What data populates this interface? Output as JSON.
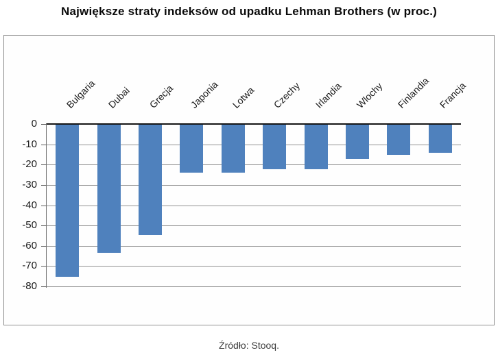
{
  "title": "Największe straty indeksów od upadku Lehman Brothers (w proc.)",
  "source": "Źródło: Stooq.",
  "chart_data": {
    "type": "bar",
    "orientation": "vertical",
    "categories": [
      "Bulgaria",
      "Dubai",
      "Grecja",
      "Japonia",
      "Lotwa",
      "Czechy",
      "Irlandia",
      "Wlochy",
      "Finlandia",
      "Francja"
    ],
    "values": [
      -75,
      -63,
      -54.5,
      -23.5,
      -23.5,
      -22,
      -22,
      -17,
      -15,
      -14
    ],
    "title": "Największe straty indeksów od upadku Lehman Brothers (w proc.)",
    "xlabel": "",
    "ylabel": "",
    "ylim": [
      -80,
      0
    ],
    "yticks": [
      0,
      -10,
      -20,
      -30,
      -40,
      -50,
      -60,
      -70,
      -80
    ],
    "grid": true,
    "legend_position": "none",
    "category_label_rotation_deg": 45,
    "bar_color": "#4f81bd"
  },
  "colors": {
    "bar": "#4f81bd",
    "gridline": "#8f8f8f",
    "zero_line": "#141414",
    "axis_line": "#6e6e6e",
    "frame_border": "#8f8f8f",
    "text": "#1a1a1a",
    "background": "#ffffff"
  }
}
